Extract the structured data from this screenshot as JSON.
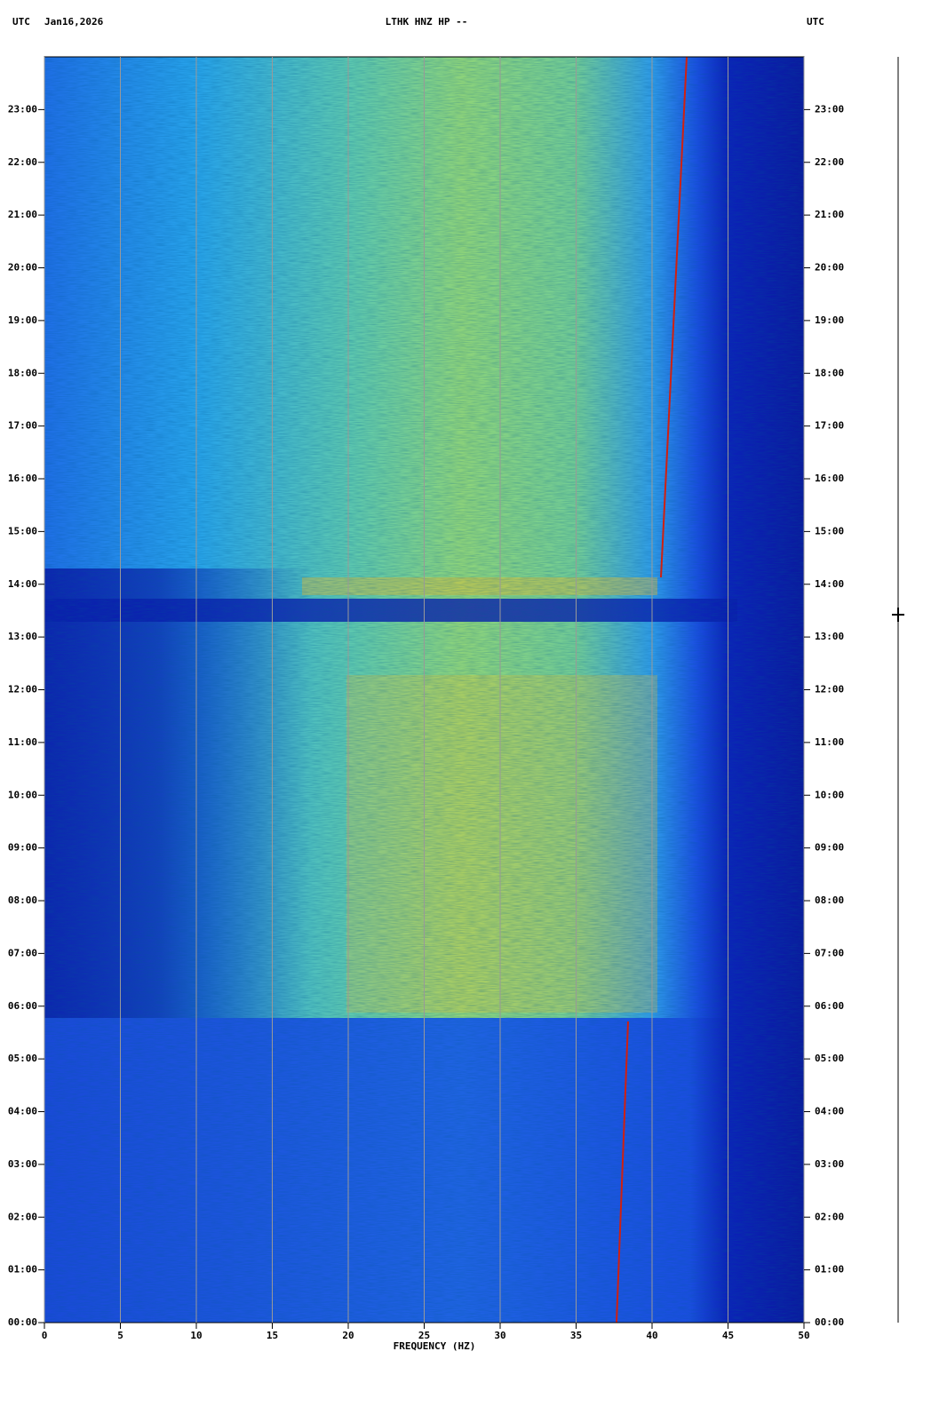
{
  "chart_data": {
    "type": "spectrogram",
    "title": "LTHK HNZ HP --",
    "timezone_left": "UTC",
    "date": "Jan16,2026",
    "timezone_right": "UTC",
    "xlabel": "FREQUENCY (HZ)",
    "xlim": [
      0,
      50
    ],
    "xticks": [
      0,
      5,
      10,
      15,
      20,
      25,
      30,
      35,
      40,
      45,
      50
    ],
    "ylim": [
      0,
      24
    ],
    "yticks": [
      {
        "value": 0,
        "label": "00:00"
      },
      {
        "value": 1,
        "label": "01:00"
      },
      {
        "value": 2,
        "label": "02:00"
      },
      {
        "value": 3,
        "label": "03:00"
      },
      {
        "value": 4,
        "label": "04:00"
      },
      {
        "value": 5,
        "label": "05:00"
      },
      {
        "value": 6,
        "label": "06:00"
      },
      {
        "value": 7,
        "label": "07:00"
      },
      {
        "value": 8,
        "label": "08:00"
      },
      {
        "value": 9,
        "label": "09:00"
      },
      {
        "value": 10,
        "label": "10:00"
      },
      {
        "value": 11,
        "label": "11:00"
      },
      {
        "value": 12,
        "label": "12:00"
      },
      {
        "value": 13,
        "label": "13:00"
      },
      {
        "value": 14,
        "label": "14:00"
      },
      {
        "value": 15,
        "label": "15:00"
      },
      {
        "value": 16,
        "label": "16:00"
      },
      {
        "value": 17,
        "label": "17:00"
      },
      {
        "value": 18,
        "label": "18:00"
      },
      {
        "value": 19,
        "label": "19:00"
      },
      {
        "value": 20,
        "label": "20:00"
      },
      {
        "value": 21,
        "label": "21:00"
      },
      {
        "value": 22,
        "label": "22:00"
      },
      {
        "value": 23,
        "label": "23:00"
      }
    ],
    "grid": true
  }
}
